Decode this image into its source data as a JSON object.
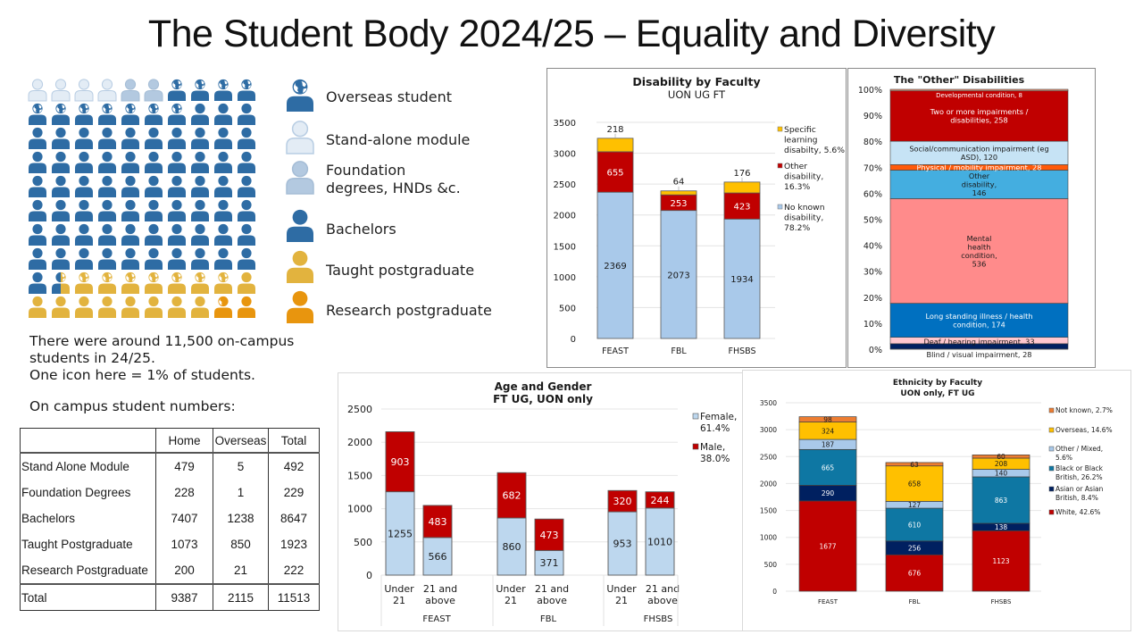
{
  "title": "The Student Body 2024/25 – Equality and Diversity",
  "icon_colors": {
    "stand_alone": "#e3ecf5",
    "foundation": "#b3c9e0",
    "bachelors": "#2e6ca4",
    "taught_pg": "#e2b33e",
    "research_pg": "#e8950e",
    "globe": "#ffffff"
  },
  "icon_grid": {
    "note": "10x10 grid; each icon = 1% of students",
    "rows": [
      [
        "stand_alone",
        "stand_alone",
        "stand_alone",
        "stand_alone",
        "foundation",
        "foundation",
        "bachelors_overseas",
        "bachelors_overseas",
        "bachelors_overseas",
        "bachelors_overseas"
      ],
      [
        "bachelors_overseas",
        "bachelors_overseas",
        "bachelors_overseas",
        "bachelors_overseas",
        "bachelors_overseas",
        "bachelors_overseas",
        "bachelors_overseas",
        "bachelors",
        "bachelors",
        "bachelors"
      ],
      [
        "bachelors",
        "bachelors",
        "bachelors",
        "bachelors",
        "bachelors",
        "bachelors",
        "bachelors",
        "bachelors",
        "bachelors",
        "bachelors"
      ],
      [
        "bachelors",
        "bachelors",
        "bachelors",
        "bachelors",
        "bachelors",
        "bachelors",
        "bachelors",
        "bachelors",
        "bachelors",
        "bachelors"
      ],
      [
        "bachelors",
        "bachelors",
        "bachelors",
        "bachelors",
        "bachelors",
        "bachelors",
        "bachelors",
        "bachelors",
        "bachelors",
        "bachelors"
      ],
      [
        "bachelors",
        "bachelors",
        "bachelors",
        "bachelors",
        "bachelors",
        "bachelors",
        "bachelors",
        "bachelors",
        "bachelors",
        "bachelors"
      ],
      [
        "bachelors",
        "bachelors",
        "bachelors",
        "bachelors",
        "bachelors",
        "bachelors",
        "bachelors",
        "bachelors",
        "bachelors",
        "bachelors"
      ],
      [
        "bachelors",
        "bachelors",
        "bachelors",
        "bachelors",
        "bachelors",
        "bachelors",
        "bachelors",
        "bachelors",
        "bachelors",
        "bachelors"
      ],
      [
        "bachelors",
        "split_bachelors_taught_pg_overseas",
        "taught_pg_overseas",
        "taught_pg_overseas",
        "taught_pg_overseas",
        "taught_pg_overseas",
        "taught_pg_overseas",
        "taught_pg_overseas",
        "taught_pg_overseas",
        "taught_pg"
      ],
      [
        "taught_pg",
        "taught_pg",
        "taught_pg",
        "taught_pg",
        "taught_pg",
        "taught_pg",
        "taught_pg",
        "taught_pg",
        "research_pg_overseas_partial",
        "research_pg"
      ]
    ]
  },
  "legend": [
    {
      "key": "overseas",
      "label": "Overseas student",
      "icon": "person-globe-icon"
    },
    {
      "key": "stand_alone",
      "label": "Stand-alone module",
      "icon": "person-icon"
    },
    {
      "key": "foundation",
      "label": "Foundation\ndegrees, HNDs &c.",
      "icon": "person-icon"
    },
    {
      "key": "bachelors",
      "label": "Bachelors",
      "icon": "person-icon"
    },
    {
      "key": "taught_pg",
      "label": "Taught postgraduate",
      "icon": "person-icon"
    },
    {
      "key": "research_pg",
      "label": "Research postgraduate",
      "icon": "person-icon"
    }
  ],
  "summary": {
    "line1": "There were around 11,500 on-campus",
    "line2": "students in 24/25.",
    "line3": "One icon here = 1% of students.",
    "table_caption": "On campus student numbers:"
  },
  "numbers_table": {
    "headers": [
      "",
      "Home",
      "Overseas",
      "Total"
    ],
    "rows": [
      [
        "Stand Alone Module",
        "479",
        "5",
        "492"
      ],
      [
        "Foundation Degrees",
        "228",
        "1",
        "229"
      ],
      [
        "Bachelors",
        "7407",
        "1238",
        "8647"
      ],
      [
        "Taught Postgraduate",
        "1073",
        "850",
        "1923"
      ],
      [
        "Research Postgraduate",
        "200",
        "21",
        "222"
      ]
    ],
    "total": [
      "Total",
      "9387",
      "2115",
      "11513"
    ]
  },
  "chart_data": [
    {
      "id": "disability",
      "type": "bar",
      "stacked": true,
      "title": "Disability by Faculty",
      "subtitle": "UON UG FT",
      "categories": [
        "FEAST",
        "FBL",
        "FHSBS"
      ],
      "ylim": [
        0,
        3500
      ],
      "yticks": [
        0,
        500,
        1000,
        1500,
        2000,
        2500,
        3000,
        3500
      ],
      "grid": true,
      "legend_position": "right",
      "series": [
        {
          "name": "No known disability, 78.2%",
          "legend_lines": [
            "No known",
            "disability,",
            "78.2%"
          ],
          "color": "#a9c9ea",
          "label_color": "#1a1a1a",
          "values": [
            2369,
            2073,
            1934
          ]
        },
        {
          "name": "Other disability, 16.3%",
          "legend_lines": [
            "Other",
            "disability,",
            "16.3%"
          ],
          "color": "#c00000",
          "label_color": "#ffffff",
          "values": [
            655,
            253,
            423
          ]
        },
        {
          "name": "Specific learning disabilty, 5.6%",
          "legend_lines": [
            "Specific",
            "learning",
            "disabilty, 5.6%"
          ],
          "color": "#ffc000",
          "label_color": "#1a1a1a",
          "label_outside": true,
          "values": [
            218,
            64,
            176
          ]
        }
      ]
    },
    {
      "id": "other_disabilities",
      "type": "bar",
      "stacked": true,
      "percent": true,
      "title": "The \"Other\" Disabilities",
      "categories": [
        ""
      ],
      "ylim": [
        0,
        100
      ],
      "yticks": [
        "0%",
        "10%",
        "20%",
        "30%",
        "40%",
        "50%",
        "60%",
        "70%",
        "80%",
        "90%",
        "100%"
      ],
      "grid": false,
      "series": [
        {
          "name": "Blind / visual impairment",
          "value": 28,
          "color": "#002060",
          "label": "Blind / visual impairment, 28",
          "label_color": "#1a1a1a",
          "label_below": true
        },
        {
          "name": "Deaf / hearing impairment",
          "value": 33,
          "color": "#ffc7ce",
          "label": "Deaf / hearing impairment, 33",
          "label_color": "#1a1a1a"
        },
        {
          "name": "Long standing illness / health condition",
          "value": 174,
          "color": "#0070c0",
          "label_lines": [
            "Long standing illness / health",
            "condition, 174"
          ],
          "label_color": "#ffffff"
        },
        {
          "name": "Mental health condition",
          "value": 536,
          "color": "#ff8b8b",
          "label_lines": [
            "Mental",
            "health",
            "condition,",
            "536"
          ],
          "label_color": "#1a1a1a"
        },
        {
          "name": "Other disability",
          "value": 146,
          "color": "#44aee0",
          "label_lines": [
            "Other",
            "disability,",
            "146"
          ],
          "label_color": "#1a1a1a"
        },
        {
          "name": "Physical / mobility impairment",
          "value": 28,
          "color": "#ff5a0a",
          "label": "Physical / mobility impairment, 28",
          "label_color": "#ffffff"
        },
        {
          "name": "Social/communication impairment (eg ASD)",
          "value": 120,
          "color": "#c6e3f5",
          "label_lines": [
            "Social/communication impairment (eg",
            "ASD), 120"
          ],
          "label_color": "#1a1a1a"
        },
        {
          "name": "Two or more impairments / disabilities",
          "value": 258,
          "color": "#c00000",
          "label_lines": [
            "Two or more impairments /",
            "disabilities, 258"
          ],
          "label_color": "#ffffff"
        },
        {
          "name": "Developmental condition",
          "value": 8,
          "color": "#e9967a",
          "label": "Developmental condition, 8",
          "label_color": "#ffffff"
        }
      ]
    },
    {
      "id": "age_gender",
      "type": "bar",
      "stacked": true,
      "title": "Age and Gender",
      "subtitle": "FT UG, UON only",
      "groups": [
        "FEAST",
        "FBL",
        "FHSBS"
      ],
      "categories": [
        "Under 21",
        "21 and above",
        "Under 21",
        "21 and above",
        "Under 21",
        "21 and above"
      ],
      "category_lines": [
        [
          "Under",
          "21"
        ],
        [
          "21 and",
          "above"
        ]
      ],
      "ylim": [
        0,
        2500
      ],
      "yticks": [
        0,
        500,
        1000,
        1500,
        2000,
        2500
      ],
      "grid": true,
      "legend_position": "right",
      "series": [
        {
          "name": "Female, 61.4%",
          "legend_lines": [
            "Female,",
            "61.4%"
          ],
          "color": "#bdd7ee",
          "label_color": "#1a1a1a",
          "values": [
            1255,
            566,
            860,
            371,
            953,
            1010
          ]
        },
        {
          "name": "Male, 38.0%",
          "legend_lines": [
            "Male,",
            "38.0%"
          ],
          "color": "#c00000",
          "label_color": "#ffffff",
          "values": [
            903,
            483,
            682,
            473,
            320,
            244
          ]
        }
      ]
    },
    {
      "id": "ethnicity",
      "type": "bar",
      "stacked": true,
      "title": "Ethnicity by Faculty",
      "subtitle": "UON only, FT UG",
      "categories": [
        "FEAST",
        "FBL",
        "FHSBS"
      ],
      "ylim": [
        0,
        3500
      ],
      "yticks": [
        0,
        500,
        1000,
        1500,
        2000,
        2500,
        3000,
        3500
      ],
      "grid": true,
      "legend_position": "right",
      "series": [
        {
          "name": "White, 42.6%",
          "legend_lines": [
            "White, 42.6%"
          ],
          "color": "#c00000",
          "label_color": "#ffffff",
          "values": [
            1677,
            676,
            1123
          ]
        },
        {
          "name": "Asian or Asian British, 8.4%",
          "legend_lines": [
            "Asian or Asian",
            "British, 8.4%"
          ],
          "color": "#002060",
          "label_color": "#ffffff",
          "values": [
            290,
            256,
            138
          ]
        },
        {
          "name": "Black or Black British, 26.2%",
          "legend_lines": [
            "Black or Black",
            "British, 26.2%"
          ],
          "color": "#0e77a3",
          "label_color": "#ffffff",
          "values": [
            665,
            610,
            863
          ]
        },
        {
          "name": "Other / Mixed, 5.6%",
          "legend_lines": [
            "Other / Mixed,",
            "5.6%"
          ],
          "color": "#a9c9ea",
          "label_color": "#1a1a1a",
          "values": [
            187,
            127,
            140
          ]
        },
        {
          "name": "Overseas, 14.6%",
          "legend_lines": [
            "Overseas, 14.6%"
          ],
          "color": "#ffc000",
          "label_color": "#1a1a1a",
          "values": [
            324,
            658,
            208
          ]
        },
        {
          "name": "Not known, 2.7%",
          "legend_lines": [
            "Not known, 2.7%"
          ],
          "color": "#ed7d31",
          "label_color": "#1a1a1a",
          "values": [
            98,
            63,
            60
          ]
        }
      ]
    }
  ]
}
